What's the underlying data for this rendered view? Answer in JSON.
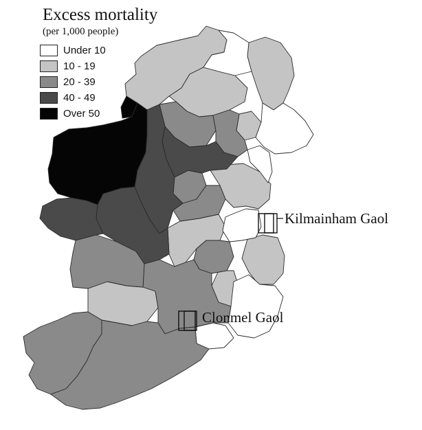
{
  "legend": {
    "title": "Excess mortality",
    "subtitle": "(per 1,000 people)",
    "items": [
      {
        "label": "Under 10",
        "color": "#ffffff"
      },
      {
        "label": "10 - 19",
        "color": "#c4c4c4"
      },
      {
        "label": "20 - 39",
        "color": "#8a8a8a"
      },
      {
        "label": "40 - 49",
        "color": "#4a4a4a"
      },
      {
        "label": "Over 50",
        "color": "#050505"
      }
    ]
  },
  "markers": [
    {
      "label": "Kilmainham Gaol"
    },
    {
      "label": "Clonmel Gaol"
    }
  ],
  "colors": {
    "coast_outline": "#2a2a2a",
    "marker_outline": "#111111"
  }
}
